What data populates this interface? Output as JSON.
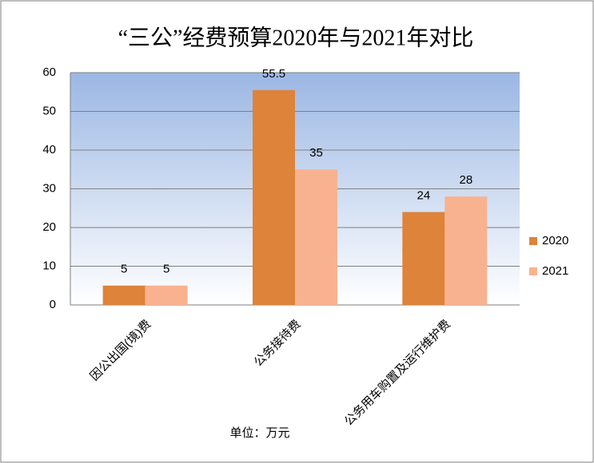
{
  "chart_data": {
    "type": "bar",
    "title": "“三公”经费预算2020年与2021年对比",
    "categories": [
      "因公出国(境)费",
      "公务接待费",
      "公务用车购置及运行维护费"
    ],
    "series": [
      {
        "name": "2020",
        "color": "#dd833a",
        "values": [
          5,
          55.5,
          24
        ]
      },
      {
        "name": "2021",
        "color": "#f9b28f",
        "values": [
          5,
          35,
          28
        ]
      }
    ],
    "ylim": [
      0,
      60
    ],
    "yticks": [
      0,
      10,
      20,
      30,
      40,
      50,
      60
    ],
    "grid": true,
    "legend": "right",
    "note": "单位：万元"
  }
}
